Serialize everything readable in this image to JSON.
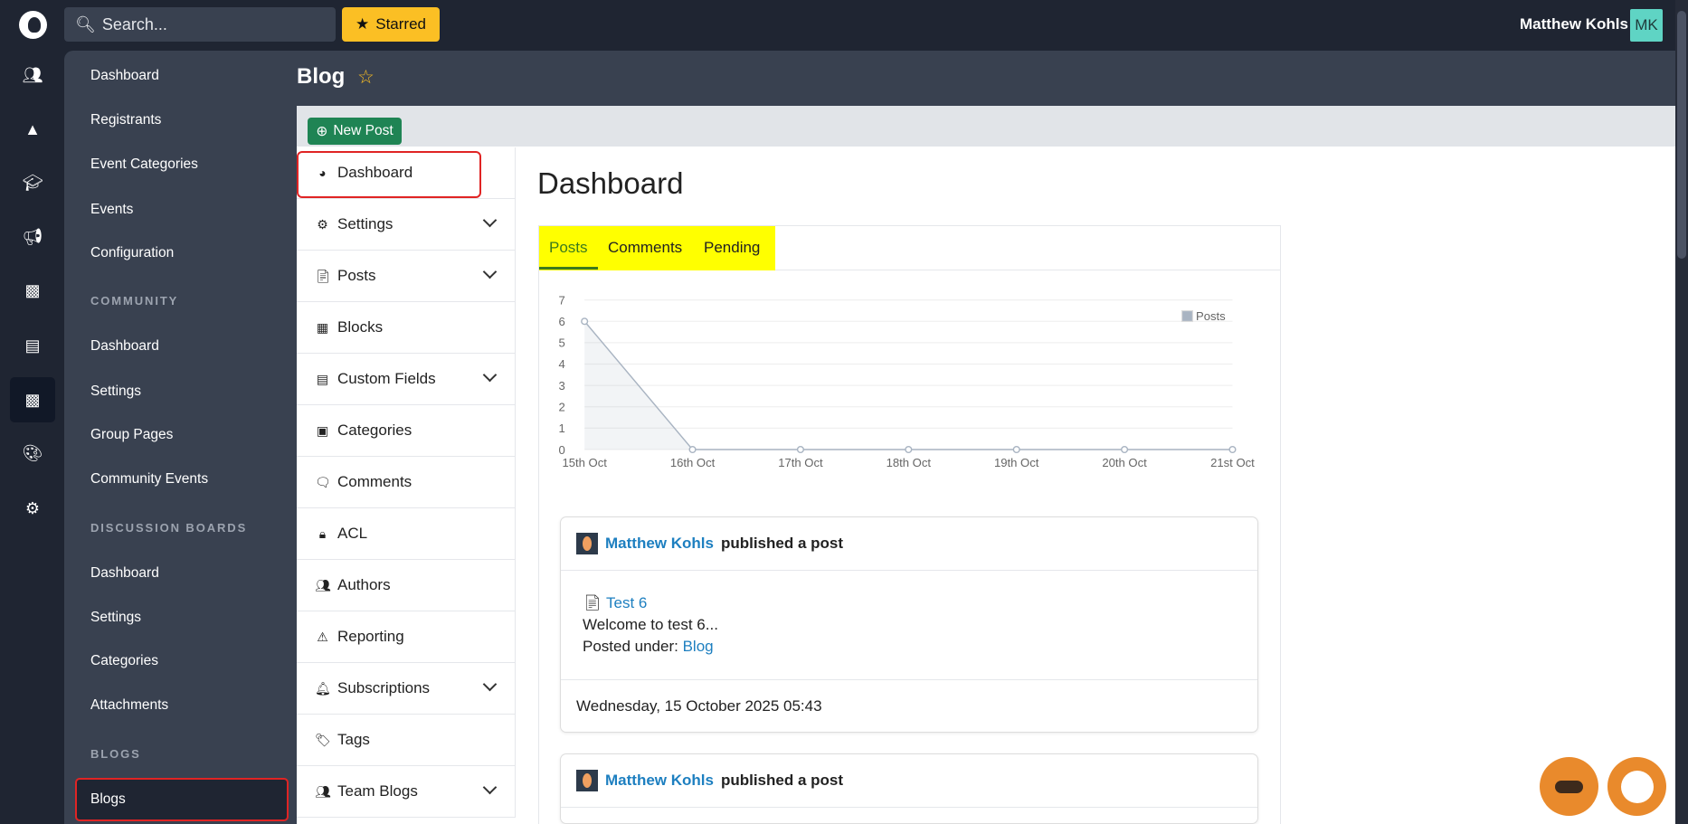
{
  "topbar": {
    "search_placeholder": "Search...",
    "starred_label": "Starred",
    "user_name": "Matthew Kohls",
    "user_initials": "MK"
  },
  "rail": [
    "users-icon",
    "shapes-icon",
    "graduation-cap-icon",
    "megaphone-icon",
    "money-icon",
    "chart-icon",
    "comment-icon",
    "palette-icon",
    "gear-icon"
  ],
  "sidebar": {
    "items1": [
      "Dashboard",
      "Registrants",
      "Event Categories",
      "Events",
      "Configuration"
    ],
    "community": {
      "heading": "COMMUNITY",
      "items": [
        "Dashboard",
        "Settings",
        "Group Pages",
        "Community Events"
      ]
    },
    "discussion": {
      "heading": "DISCUSSION BOARDS",
      "items": [
        "Dashboard",
        "Settings",
        "Categories",
        "Attachments"
      ]
    },
    "blogs": {
      "heading": "BLOGS",
      "items": [
        "Blogs"
      ]
    }
  },
  "page": {
    "title": "Blog",
    "new_post": "New Post",
    "heading": "Dashboard"
  },
  "menu": [
    {
      "label": "Dashboard",
      "icon": "dashboard-icon"
    },
    {
      "label": "Settings",
      "icon": "gear-icon",
      "expandable": true
    },
    {
      "label": "Posts",
      "icon": "file-icon",
      "expandable": true
    },
    {
      "label": "Blocks",
      "icon": "cubes-icon"
    },
    {
      "label": "Custom Fields",
      "icon": "list-icon",
      "expandable": true
    },
    {
      "label": "Categories",
      "icon": "archive-icon"
    },
    {
      "label": "Comments",
      "icon": "comments-icon"
    },
    {
      "label": "ACL",
      "icon": "lock-icon"
    },
    {
      "label": "Authors",
      "icon": "users-icon"
    },
    {
      "label": "Reporting",
      "icon": "warning-icon"
    },
    {
      "label": "Subscriptions",
      "icon": "bell-icon",
      "expandable": true
    },
    {
      "label": "Tags",
      "icon": "tags-icon"
    },
    {
      "label": "Team Blogs",
      "icon": "users-icon",
      "expandable": true
    }
  ],
  "tabs": [
    "Posts",
    "Comments",
    "Pending"
  ],
  "chart_data": {
    "type": "area",
    "categories": [
      "15th Oct",
      "16th Oct",
      "17th Oct",
      "18th Oct",
      "19th Oct",
      "20th Oct",
      "21st Oct"
    ],
    "series": [
      {
        "name": "Posts",
        "values": [
          6,
          0,
          0,
          0,
          0,
          0,
          0
        ]
      }
    ],
    "ylim": [
      0,
      7
    ],
    "yticks": [
      0,
      1,
      2,
      3,
      4,
      5,
      6,
      7
    ],
    "legend": "top-right",
    "grid": true,
    "color": "#a9b4c2"
  },
  "posts": [
    {
      "author": "Matthew Kohls",
      "action": "published a post",
      "title": "Test 6",
      "excerpt": "Welcome to test 6...",
      "posted_under_label": "Posted under:",
      "category": "Blog",
      "date": "Wednesday, 15 October 2025 05:43"
    },
    {
      "author": "Matthew Kohls",
      "action": "published a post"
    }
  ]
}
